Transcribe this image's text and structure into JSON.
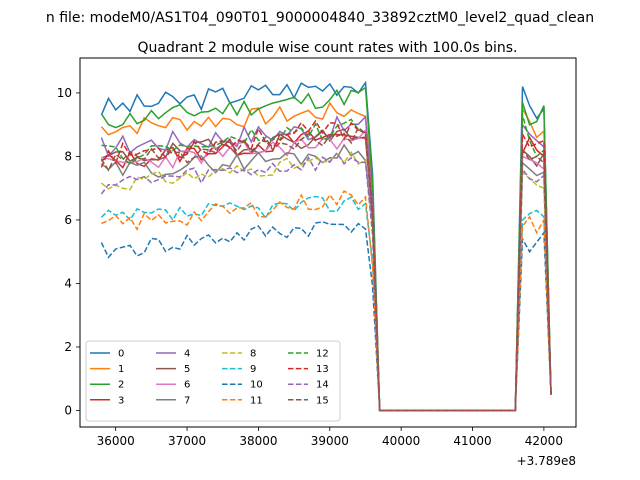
{
  "chart_data": {
    "type": "line",
    "suptitle": "n file: modeM0/AS1T04_090T01_9000004840_33892cztM0_level2_quad_clean",
    "title": "Quadrant 2 module wise count rates with 100.0s bins.",
    "xlabel": "",
    "ylabel": "",
    "offset_label": "+3.789e8",
    "x_offset": 378900000,
    "xlim": [
      35500,
      42450
    ],
    "ylim": [
      -0.52,
      11.1
    ],
    "xticks": [
      36000,
      37000,
      38000,
      39000,
      40000,
      41000,
      42000
    ],
    "yticks": [
      0,
      2,
      4,
      6,
      8,
      10
    ],
    "grid": false,
    "legend_position": "lower-left",
    "legend_columns": 4,
    "x_start": 35800,
    "x_step": 100,
    "n_points": 64,
    "gap": {
      "start": 39700,
      "end": 41500,
      "value": 0
    },
    "series": [
      {
        "name": "0",
        "color": "#1f77b4",
        "dash": "solid",
        "base": 9.5,
        "noise": 0.35,
        "trend": 0.9,
        "seed": 3,
        "tail": [
          10.2,
          9.6,
          9.2,
          9.5,
          0.5
        ]
      },
      {
        "name": "1",
        "color": "#ff7f0e",
        "dash": "solid",
        "base": 8.9,
        "noise": 0.3,
        "trend": 0.6,
        "seed": 7,
        "tail": [
          9.5,
          9.1,
          8.6,
          8.8,
          0.5
        ]
      },
      {
        "name": "2",
        "color": "#2ca02c",
        "dash": "solid",
        "base": 9.1,
        "noise": 0.3,
        "trend": 0.9,
        "seed": 11,
        "tail": [
          9.7,
          9.0,
          9.1,
          9.6,
          0.5
        ]
      },
      {
        "name": "3",
        "color": "#d62728",
        "dash": "solid",
        "base": 7.8,
        "noise": 0.3,
        "trend": 1.0,
        "seed": 13,
        "tail": [
          8.1,
          8.6,
          8.2,
          8.0,
          0.5
        ]
      },
      {
        "name": "4",
        "color": "#9467bd",
        "dash": "solid",
        "base": 8.3,
        "noise": 0.35,
        "trend": 0.7,
        "seed": 17,
        "tail": [
          9.0,
          8.7,
          8.5,
          8.3,
          0.5
        ]
      },
      {
        "name": "5",
        "color": "#8c564b",
        "dash": "solid",
        "base": 7.9,
        "noise": 0.3,
        "trend": 0.9,
        "seed": 19,
        "tail": [
          8.2,
          8.0,
          7.7,
          8.1,
          0.5
        ]
      },
      {
        "name": "6",
        "color": "#e377c2",
        "dash": "solid",
        "base": 7.7,
        "noise": 0.3,
        "trend": 0.9,
        "seed": 23,
        "tail": [
          8.0,
          7.9,
          7.8,
          7.6,
          0.5
        ]
      },
      {
        "name": "7",
        "color": "#7f7f7f",
        "dash": "solid",
        "base": 7.5,
        "noise": 0.3,
        "trend": 0.7,
        "seed": 29,
        "tail": [
          7.8,
          7.6,
          7.4,
          7.5,
          0.5
        ]
      },
      {
        "name": "8",
        "color": "#bcbd22",
        "dash": "dashed",
        "base": 7.1,
        "noise": 0.25,
        "trend": 0.9,
        "seed": 31,
        "tail": [
          7.5,
          7.3,
          7.1,
          7.0,
          0.5
        ]
      },
      {
        "name": "9",
        "color": "#17becf",
        "dash": "dashed",
        "base": 6.0,
        "noise": 0.3,
        "trend": 0.6,
        "seed": 37,
        "tail": [
          6.0,
          6.2,
          6.3,
          6.1,
          0.5
        ]
      },
      {
        "name": "10",
        "color": "#1f77b4",
        "dash": "dashed",
        "base": 5.0,
        "noise": 0.3,
        "trend": 1.0,
        "seed": 41,
        "tail": [
          5.4,
          5.0,
          5.3,
          5.6,
          0.5
        ]
      },
      {
        "name": "11",
        "color": "#ff7f0e",
        "dash": "dashed",
        "base": 5.8,
        "noise": 0.3,
        "trend": 1.0,
        "seed": 43,
        "tail": [
          5.8,
          6.1,
          5.6,
          6.0,
          0.5
        ]
      },
      {
        "name": "12",
        "color": "#2ca02c",
        "dash": "dashed",
        "base": 8.0,
        "noise": 0.35,
        "trend": 1.0,
        "seed": 47,
        "tail": [
          9.3,
          8.5,
          8.0,
          8.2,
          0.5
        ]
      },
      {
        "name": "13",
        "color": "#d62728",
        "dash": "dashed",
        "base": 8.0,
        "noise": 0.35,
        "trend": 1.0,
        "seed": 53,
        "tail": [
          8.7,
          8.3,
          8.4,
          8.5,
          0.5
        ]
      },
      {
        "name": "14",
        "color": "#9467bd",
        "dash": "dashed",
        "base": 7.1,
        "noise": 0.3,
        "trend": 0.9,
        "seed": 59,
        "tail": [
          7.6,
          7.3,
          7.2,
          7.4,
          0.5
        ]
      },
      {
        "name": "15",
        "color": "#8c564b",
        "dash": "dashed",
        "base": 7.8,
        "noise": 0.3,
        "trend": 0.9,
        "seed": 61,
        "tail": [
          8.2,
          7.9,
          8.0,
          7.8,
          0.5
        ]
      }
    ]
  }
}
